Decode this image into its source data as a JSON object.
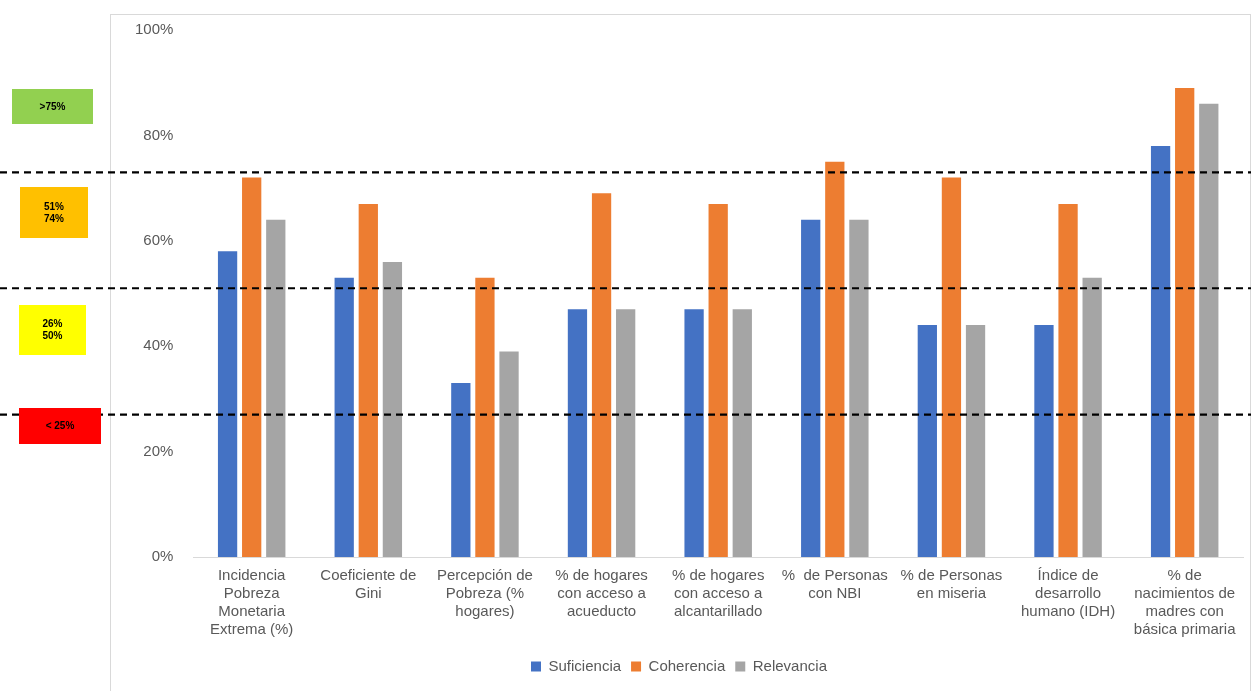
{
  "chart_data": {
    "type": "bar",
    "categories": [
      "Incidencia Pobreza Monetaria Extrema (%)",
      "Coeficiente de Gini",
      "Percepción de Pobreza (% hogares)",
      "% de hogares con acceso a acueducto",
      "% de hogares con acceso a alcantarillado",
      "%  de Personas con NBI",
      "% de Personas en miseria",
      "Índice de desarrollo humano (IDH)",
      "% de nacimientos de madres con básica primaria"
    ],
    "series": [
      {
        "name": "Suficiencia",
        "color": "#4472c4",
        "values": [
          58,
          53,
          33,
          47,
          47,
          64,
          44,
          44,
          78
        ]
      },
      {
        "name": "Coherencia",
        "color": "#ed7d31",
        "values": [
          72,
          67,
          53,
          69,
          67,
          75,
          72,
          67,
          89
        ]
      },
      {
        "name": "Relevancia",
        "color": "#a5a5a5",
        "values": [
          64,
          56,
          39,
          47,
          47,
          64,
          44,
          53,
          86
        ]
      }
    ],
    "ylim": [
      0,
      100
    ],
    "yticks": [
      {
        "value": 0,
        "label": "0%"
      },
      {
        "value": 20,
        "label": "20%"
      },
      {
        "value": 40,
        "label": "40%"
      },
      {
        "value": 60,
        "label": "60%"
      },
      {
        "value": 80,
        "label": "80%"
      },
      {
        "value": 100,
        "label": "100%"
      }
    ],
    "grid": false,
    "legend": "bottom",
    "ref_lines": [
      {
        "axis": "y",
        "value": 73,
        "color": "#000000",
        "line_style": "dashed"
      },
      {
        "axis": "y",
        "value": 51,
        "color": "#000000",
        "line_style": "dashed"
      },
      {
        "axis": "y",
        "value": 27,
        "color": "#000000",
        "line_style": "dashed"
      }
    ],
    "annotations": [
      ">75%",
      "51%\n74%",
      "26%\n50%",
      "< 25%"
    ]
  }
}
